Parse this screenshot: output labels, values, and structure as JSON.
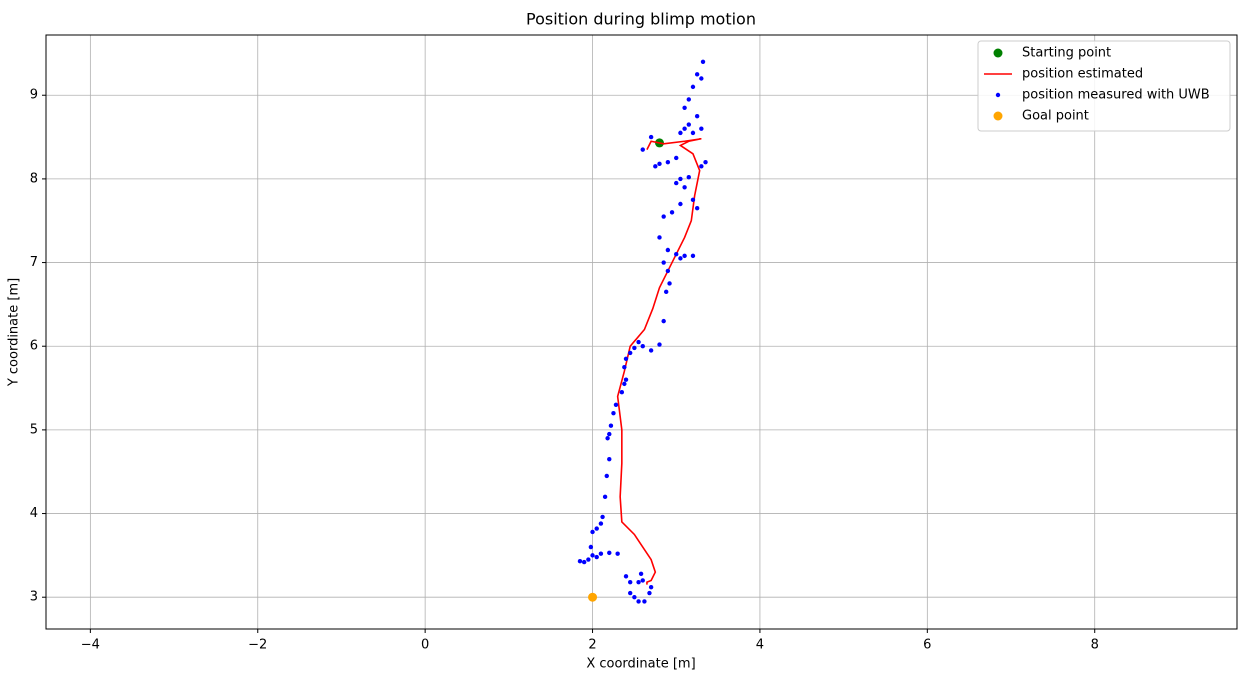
{
  "chart_data": {
    "type": "scatter",
    "title": "Position during blimp motion",
    "xlabel": "X coordinate [m]",
    "ylabel": "Y coordinate [m]",
    "xlim": [
      -4.53,
      9.7
    ],
    "ylim": [
      2.62,
      9.72
    ],
    "xticks": [
      {
        "value": -4,
        "label": "−4"
      },
      {
        "value": -2,
        "label": "−2"
      },
      0,
      2,
      4,
      6,
      8
    ],
    "yticks": [
      3,
      4,
      5,
      6,
      7,
      8,
      9
    ],
    "grid": true,
    "legend": "upper right",
    "series": [
      {
        "name": "Starting point",
        "type": "scatter",
        "color": "#008000",
        "x": [
          2.8
        ],
        "values": [
          8.43
        ]
      },
      {
        "name": "position estimated",
        "type": "line",
        "color": "#ff0000",
        "x": [
          2.65,
          2.7,
          2.85,
          3.1,
          3.3,
          3.15,
          3.05,
          3.2,
          3.28,
          3.22,
          3.18,
          3.1,
          3.0,
          2.9,
          2.8,
          2.72,
          2.62,
          2.45,
          2.38,
          2.3,
          2.35,
          2.35,
          2.33,
          2.35,
          2.5,
          2.6,
          2.7,
          2.75,
          2.7,
          2.65,
          2.65
        ],
        "values": [
          8.35,
          8.45,
          8.42,
          8.45,
          8.48,
          8.45,
          8.4,
          8.3,
          8.1,
          7.8,
          7.5,
          7.3,
          7.1,
          6.9,
          6.7,
          6.45,
          6.2,
          6.0,
          5.7,
          5.4,
          5.0,
          4.6,
          4.2,
          3.9,
          3.75,
          3.6,
          3.45,
          3.3,
          3.2,
          3.18,
          3.15
        ]
      },
      {
        "name": "position measured with UWB",
        "type": "scatter",
        "color": "#0000ff",
        "x": [
          1.85,
          1.9,
          1.95,
          2.0,
          2.05,
          2.1,
          2.2,
          2.3,
          1.98,
          2.0,
          2.05,
          2.1,
          2.12,
          2.15,
          2.17,
          2.2,
          2.18,
          2.2,
          2.22,
          2.25,
          2.28,
          2.35,
          2.38,
          2.4,
          2.38,
          2.4,
          2.45,
          2.5,
          2.55,
          2.6,
          2.7,
          2.8,
          2.85,
          2.88,
          2.92,
          2.9,
          2.85,
          2.9,
          3.0,
          3.05,
          3.1,
          3.2,
          2.8,
          2.85,
          2.95,
          3.05,
          3.1,
          3.2,
          3.25,
          3.0,
          3.05,
          3.15,
          2.75,
          2.8,
          2.9,
          3.0,
          2.6,
          2.7,
          3.05,
          3.1,
          3.15,
          3.2,
          3.25,
          3.3,
          3.3,
          3.35,
          3.15,
          3.2,
          3.25,
          3.3,
          3.32,
          3.1,
          2.45,
          2.4,
          2.5,
          2.55,
          2.62,
          2.68,
          2.7,
          2.6,
          2.58,
          2.55,
          2.45
        ],
        "values": [
          3.43,
          3.42,
          3.45,
          3.5,
          3.48,
          3.52,
          3.53,
          3.52,
          3.6,
          3.78,
          3.82,
          3.88,
          3.96,
          4.2,
          4.45,
          4.65,
          4.9,
          4.95,
          5.05,
          5.2,
          5.3,
          5.45,
          5.55,
          5.6,
          5.75,
          5.85,
          5.92,
          5.98,
          6.05,
          6.0,
          5.95,
          6.02,
          6.3,
          6.65,
          6.75,
          6.9,
          7.0,
          7.15,
          7.1,
          7.05,
          7.08,
          7.08,
          7.3,
          7.55,
          7.6,
          7.7,
          7.9,
          7.75,
          7.65,
          7.95,
          8.0,
          8.02,
          8.15,
          8.18,
          8.2,
          8.25,
          8.35,
          8.5,
          8.55,
          8.6,
          8.65,
          8.55,
          8.75,
          8.6,
          8.15,
          8.2,
          8.95,
          9.1,
          9.25,
          9.2,
          9.4,
          8.85,
          3.18,
          3.25,
          3.0,
          2.95,
          2.95,
          3.05,
          3.12,
          3.2,
          3.28,
          3.18,
          3.05
        ]
      },
      {
        "name": "Goal point",
        "type": "scatter",
        "color": "#ffa500",
        "x": [
          2.0
        ],
        "values": [
          3.0
        ]
      }
    ]
  }
}
